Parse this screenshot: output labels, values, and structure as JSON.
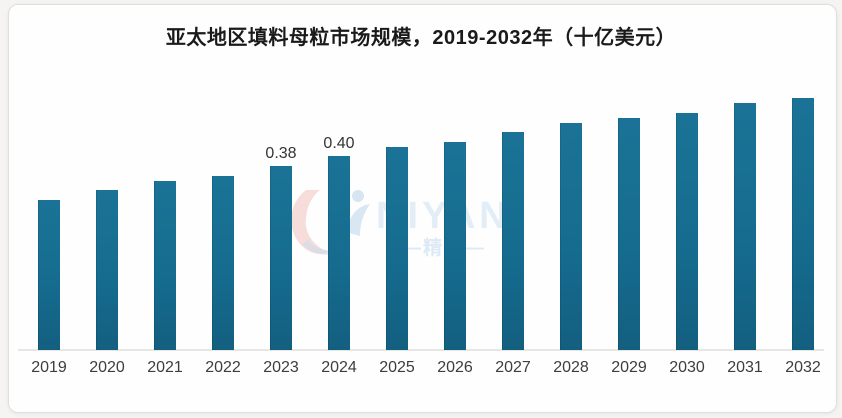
{
  "card": {
    "background": "#fefefe",
    "border_color": "#e1dfdc"
  },
  "chart_data": {
    "type": "bar",
    "title": "亚太地区填料母粒市场规模，2019-2032年（十亿美元）",
    "categories": [
      "2019",
      "2020",
      "2021",
      "2022",
      "2023",
      "2024",
      "2025",
      "2026",
      "2027",
      "2028",
      "2029",
      "2030",
      "2031",
      "2032"
    ],
    "values": [
      0.31,
      0.33,
      0.35,
      0.36,
      0.38,
      0.4,
      0.42,
      0.43,
      0.45,
      0.47,
      0.48,
      0.49,
      0.51,
      0.52
    ],
    "data_labels": {
      "2023": "0.38",
      "2024": "0.40"
    },
    "bar_color": "#156c8f",
    "xlabel": "",
    "ylabel": "",
    "unit": "十亿美元",
    "ylim": [
      0,
      0.55
    ],
    "grid": false,
    "legend_position": "none"
  },
  "watermark": {
    "latin": "NIYAN",
    "cn": "—精颜—",
    "text_color": "#bdd6ea",
    "accent_red": "#e89287",
    "accent_blue": "#9cc0de"
  }
}
